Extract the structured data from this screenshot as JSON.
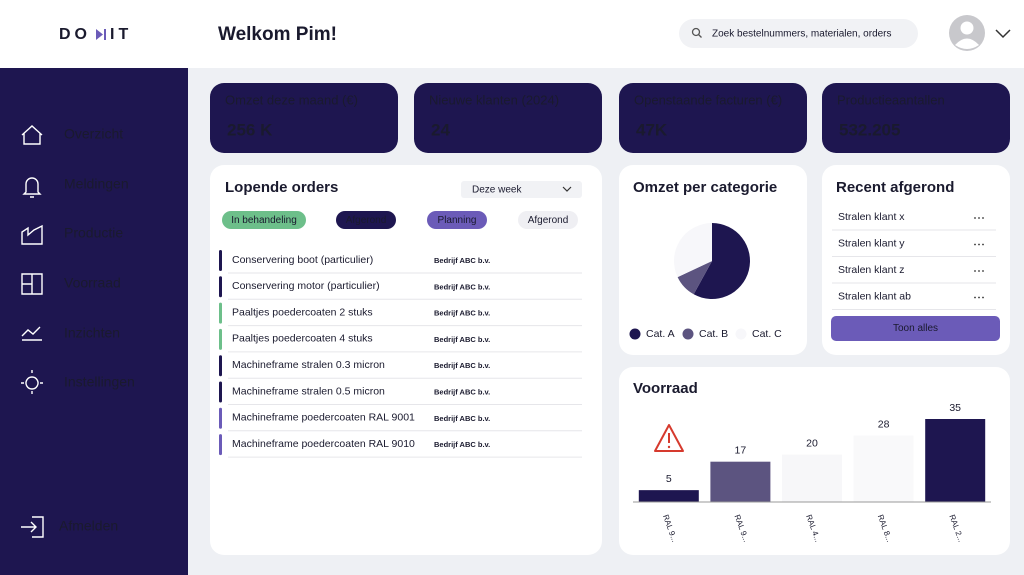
{
  "header": {
    "logo": [
      "DO",
      "IT"
    ],
    "greeting": "Welkom Pim!",
    "search_placeholder": "Zoek bestelnummers, materialen, orders"
  },
  "sidebar": {
    "nav": [
      "Overzicht",
      "Meldingen",
      "Productie",
      "Voorraad",
      "Inzichten",
      "Instellingen"
    ],
    "logout": "Afmelden"
  },
  "kpis": [
    {
      "label": "Omzet deze maand (€)",
      "value": "256 K"
    },
    {
      "label": "Nieuwe klanten (2024)",
      "value": "24"
    },
    {
      "label": "Openstaande facturen (€)",
      "value": "47K"
    },
    {
      "label": "Productieaantallen",
      "value": "532.205"
    }
  ],
  "orders": {
    "title": "Lopende orders",
    "period": "Deze week",
    "filters": [
      {
        "label": "In behandeling",
        "color": "#6dbf8a"
      },
      {
        "label": "Afgerond",
        "color": "#1e1650"
      },
      {
        "label": "Planning",
        "color": "#6b5bb8"
      },
      {
        "label": "Afgerond",
        "color": "#efeff3"
      }
    ],
    "rows": [
      {
        "name": "Conservering boot (particulier)",
        "company": "Bedrijf ABC b.v.",
        "color": "#1e1650"
      },
      {
        "name": "Conservering motor (particulier)",
        "company": "Bedrijf ABC b.v.",
        "color": "#1e1650"
      },
      {
        "name": "Paaltjes poedercoaten 2 stuks",
        "company": "Bedrijf ABC b.v.",
        "color": "#6dbf8a"
      },
      {
        "name": "Paaltjes poedercoaten 4 stuks",
        "company": "Bedrijf ABC b.v.",
        "color": "#6dbf8a"
      },
      {
        "name": "Machineframe stralen 0.3 micron",
        "company": "Bedrijf ABC b.v.",
        "color": "#1e1650"
      },
      {
        "name": "Machineframe stralen 0.5 micron",
        "company": "Bedrijf ABC b.v.",
        "color": "#1e1650"
      },
      {
        "name": "Machineframe poedercoaten RAL 9001",
        "company": "Bedrijf ABC b.v.",
        "color": "#6b5bb8"
      },
      {
        "name": "Machineframe poedercoaten RAL 9010",
        "company": "Bedrijf ABC b.v.",
        "color": "#6b5bb8"
      }
    ]
  },
  "recent": {
    "title": "Recent afgerond",
    "items": [
      "Stralen klant x",
      "Stralen klant y",
      "Stralen klant z",
      "Stralen klant ab"
    ],
    "button": "Toon alles"
  },
  "chart_data": [
    {
      "type": "pie",
      "title": "Omzet per categorie",
      "categories": [
        "Cat. A",
        "Cat. B",
        "Cat. C"
      ],
      "values": [
        58,
        10,
        32
      ],
      "colors": [
        "#1e1650",
        "#5c5480",
        "#f7f7fa"
      ]
    },
    {
      "type": "bar",
      "title": "Voorraad",
      "categories": [
        "RAL 9...",
        "RAL 9...",
        "RAL 4...",
        "RAL 8...",
        "RAL 2..."
      ],
      "values": [
        5,
        17,
        20,
        28,
        35
      ],
      "colors": [
        "#1e1650",
        "#5c5480",
        "#f7f7f9",
        "#f9f9fa",
        "#1e1650"
      ],
      "ylim": [
        0,
        35
      ]
    }
  ]
}
